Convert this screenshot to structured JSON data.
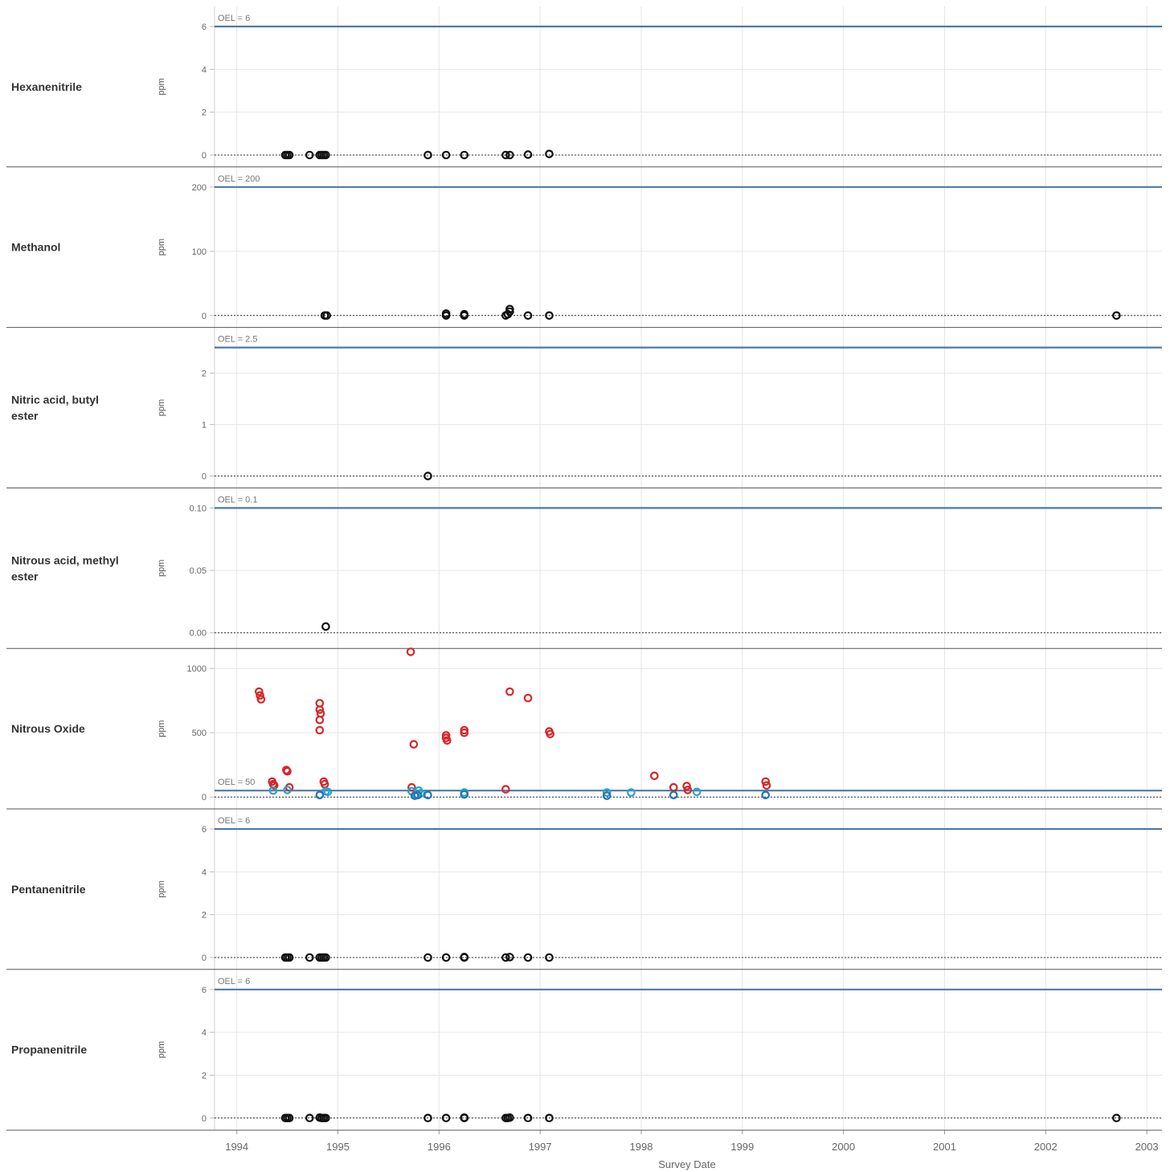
{
  "chart_data": {
    "type": "scatter",
    "xlabel": "Survey Date",
    "x_ticks": [
      "1994",
      "1995",
      "1996",
      "1997",
      "1998",
      "1999",
      "2000",
      "2001",
      "2002",
      "2003"
    ],
    "xlim": [
      1993.78,
      2003.15
    ],
    "marker": "open-circle",
    "colors": {
      "oel_line": "#4e79a7",
      "black": "#111111",
      "red": "#d62728",
      "light_blue": "#2aa3cc",
      "dark_blue": "#1f77b4",
      "grid": "#e6e6e6",
      "frame": "#555555"
    },
    "panels": [
      {
        "name": "Hexanenitrile",
        "unit": "ppm",
        "ylim": [
          0,
          6.0
        ],
        "yticks": [
          "0",
          "2",
          "4",
          "6"
        ],
        "oel": 6,
        "oel_label": "OEL = 6",
        "series": [
          {
            "color": "black",
            "points": [
              [
                1994.48,
                0
              ],
              [
                1994.5,
                0
              ],
              [
                1994.52,
                0
              ],
              [
                1994.72,
                0
              ],
              [
                1994.82,
                0
              ],
              [
                1994.84,
                0
              ],
              [
                1994.86,
                0
              ],
              [
                1994.88,
                0
              ],
              [
                1995.89,
                0
              ],
              [
                1996.07,
                0
              ],
              [
                1996.25,
                0
              ],
              [
                1996.66,
                0
              ],
              [
                1996.7,
                0
              ],
              [
                1996.88,
                0.02
              ],
              [
                1997.09,
                0.05
              ]
            ]
          }
        ]
      },
      {
        "name": "Methanol",
        "unit": "ppm",
        "ylim": [
          0,
          200
        ],
        "yticks": [
          "0",
          "100",
          "200"
        ],
        "oel": 200,
        "oel_label": "OEL = 200",
        "series": [
          {
            "color": "black",
            "points": [
              [
                1994.87,
                0
              ],
              [
                1994.89,
                0
              ],
              [
                1996.07,
                0
              ],
              [
                1996.07,
                3
              ],
              [
                1996.25,
                0
              ],
              [
                1996.25,
                2
              ],
              [
                1996.66,
                0
              ],
              [
                1996.68,
                2
              ],
              [
                1996.7,
                6
              ],
              [
                1996.7,
                10
              ],
              [
                1996.88,
                0
              ],
              [
                1997.09,
                0
              ],
              [
                2002.7,
                0
              ]
            ]
          }
        ]
      },
      {
        "name": "Nitric acid, butyl ester",
        "unit": "ppm",
        "ylim": [
          0,
          2.5
        ],
        "yticks": [
          "0",
          "1",
          "2"
        ],
        "oel": 2.5,
        "oel_label": "OEL = 2.5",
        "series": [
          {
            "color": "black",
            "points": [
              [
                1995.89,
                0
              ]
            ]
          }
        ]
      },
      {
        "name": "Nitrous acid, methyl ester",
        "unit": "ppm",
        "ylim": [
          -0.003,
          0.1
        ],
        "yticks": [
          "0.00",
          "0.05",
          "0.10"
        ],
        "oel": 0.1,
        "oel_label": "OEL = 0.1",
        "series": [
          {
            "color": "black",
            "points": [
              [
                1994.88,
                0.005
              ]
            ]
          }
        ]
      },
      {
        "name": "Nitrous Oxide",
        "unit": "ppm",
        "ylim": [
          0,
          1000
        ],
        "yticks": [
          "0",
          "500",
          "1000"
        ],
        "oel": 50,
        "oel_label": "OEL = 50",
        "series": [
          {
            "color": "red",
            "points": [
              [
                1994.22,
                820
              ],
              [
                1994.23,
                790
              ],
              [
                1994.24,
                760
              ],
              [
                1994.35,
                120
              ],
              [
                1994.36,
                100
              ],
              [
                1994.37,
                90
              ],
              [
                1994.49,
                210
              ],
              [
                1994.5,
                200
              ],
              [
                1994.52,
                75
              ],
              [
                1994.82,
                730
              ],
              [
                1994.82,
                680
              ],
              [
                1994.83,
                650
              ],
              [
                1994.82,
                600
              ],
              [
                1994.82,
                520
              ],
              [
                1994.86,
                120
              ],
              [
                1994.87,
                100
              ],
              [
                1995.72,
                1130
              ],
              [
                1995.73,
                75
              ],
              [
                1995.75,
                410
              ],
              [
                1996.07,
                480
              ],
              [
                1996.07,
                460
              ],
              [
                1996.08,
                440
              ],
              [
                1996.25,
                520
              ],
              [
                1996.25,
                500
              ],
              [
                1996.66,
                60
              ],
              [
                1996.7,
                820
              ],
              [
                1996.88,
                770
              ],
              [
                1997.09,
                510
              ],
              [
                1997.1,
                490
              ],
              [
                1998.13,
                165
              ],
              [
                1998.32,
                75
              ],
              [
                1998.45,
                85
              ],
              [
                1998.46,
                55
              ],
              [
                1999.23,
                120
              ],
              [
                1999.24,
                90
              ]
            ]
          },
          {
            "color": "light_blue",
            "points": [
              [
                1994.36,
                50
              ],
              [
                1994.5,
                55
              ],
              [
                1994.88,
                45
              ],
              [
                1994.9,
                40
              ],
              [
                1995.73,
                45
              ],
              [
                1995.77,
                20
              ],
              [
                1995.8,
                50
              ],
              [
                1995.82,
                30
              ],
              [
                1996.25,
                35
              ],
              [
                1997.66,
                35
              ],
              [
                1997.9,
                35
              ],
              [
                1998.55,
                40
              ]
            ]
          },
          {
            "color": "dark_blue",
            "points": [
              [
                1994.82,
                15
              ],
              [
                1995.76,
                10
              ],
              [
                1995.79,
                15
              ],
              [
                1995.89,
                15
              ],
              [
                1996.25,
                20
              ],
              [
                1997.66,
                10
              ],
              [
                1998.32,
                15
              ],
              [
                1999.23,
                15
              ]
            ]
          }
        ]
      },
      {
        "name": "Pentanenitrile",
        "unit": "ppm",
        "ylim": [
          0,
          6.0
        ],
        "yticks": [
          "0",
          "2",
          "4",
          "6"
        ],
        "oel": 6,
        "oel_label": "OEL = 6",
        "series": [
          {
            "color": "black",
            "points": [
              [
                1994.48,
                0
              ],
              [
                1994.5,
                0
              ],
              [
                1994.52,
                0
              ],
              [
                1994.72,
                0
              ],
              [
                1994.82,
                0
              ],
              [
                1994.84,
                0
              ],
              [
                1994.86,
                0
              ],
              [
                1994.88,
                0
              ],
              [
                1995.89,
                0
              ],
              [
                1996.07,
                0
              ],
              [
                1996.25,
                0
              ],
              [
                1996.25,
                0.02
              ],
              [
                1996.66,
                0
              ],
              [
                1996.7,
                0.02
              ],
              [
                1996.88,
                0
              ],
              [
                1997.09,
                0
              ]
            ]
          }
        ]
      },
      {
        "name": "Propanenitrile",
        "unit": "ppm",
        "ylim": [
          0,
          6.0
        ],
        "yticks": [
          "0",
          "2",
          "4",
          "6"
        ],
        "oel": 6,
        "oel_label": "OEL = 6",
        "series": [
          {
            "color": "black",
            "points": [
              [
                1994.48,
                0
              ],
              [
                1994.5,
                0
              ],
              [
                1994.52,
                0
              ],
              [
                1994.72,
                0
              ],
              [
                1994.82,
                0.02
              ],
              [
                1994.84,
                0
              ],
              [
                1994.86,
                0
              ],
              [
                1994.88,
                0
              ],
              [
                1995.89,
                0
              ],
              [
                1996.07,
                0
              ],
              [
                1996.25,
                0
              ],
              [
                1996.25,
                0.02
              ],
              [
                1996.66,
                0
              ],
              [
                1996.68,
                0
              ],
              [
                1996.7,
                0.02
              ],
              [
                1996.88,
                0
              ],
              [
                1997.09,
                0
              ],
              [
                2002.7,
                0
              ]
            ]
          }
        ]
      }
    ]
  }
}
